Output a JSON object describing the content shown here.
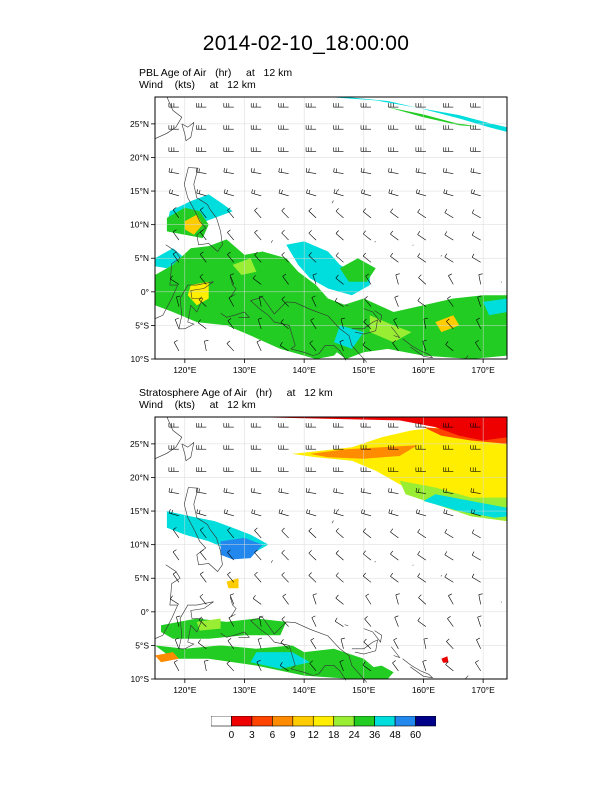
{
  "title": "2014-02-10_18:00:00",
  "panels": [
    {
      "id": "pbl",
      "field_line": "PBL Age of Air   (hr)     at   12 km",
      "wind_line": "Wind    (kts)     at   12 km"
    },
    {
      "id": "strat",
      "field_line": "Stratosphere Age of Air   (hr)     at   12 km",
      "wind_line": "Wind    (kts)     at   12 km"
    }
  ],
  "map": {
    "lon_range": [
      115,
      174
    ],
    "lat_range": [
      -10,
      29
    ],
    "lon_ticks": [
      {
        "value": 120,
        "label": "120°E"
      },
      {
        "value": 130,
        "label": "130°E"
      },
      {
        "value": 140,
        "label": "140°E"
      },
      {
        "value": 150,
        "label": "150°E"
      },
      {
        "value": 160,
        "label": "160°E"
      },
      {
        "value": 170,
        "label": "170°E"
      }
    ],
    "lat_ticks": [
      {
        "value": 25,
        "label": "25°N"
      },
      {
        "value": 20,
        "label": "20°N"
      },
      {
        "value": 15,
        "label": "15°N"
      },
      {
        "value": 10,
        "label": "10°N"
      },
      {
        "value": 5,
        "label": "5°N"
      },
      {
        "value": 0,
        "label": "0°"
      },
      {
        "value": -5,
        "label": "5°S"
      },
      {
        "value": -10,
        "label": "10°S"
      }
    ]
  },
  "colorbar": {
    "labels": [
      "0",
      "3",
      "6",
      "9",
      "12",
      "18",
      "24",
      "36",
      "48",
      "60"
    ],
    "colors": [
      "#ffffff",
      "#ee0000",
      "#ff4400",
      "#ff8c00",
      "#ffcc00",
      "#ffee00",
      "#99ee33",
      "#22cc22",
      "#00dddd",
      "#2288ee",
      "#000088"
    ]
  },
  "colors": {
    "grid": "#d8d8d8",
    "coast": "#333333",
    "barb": "#000000"
  }
}
